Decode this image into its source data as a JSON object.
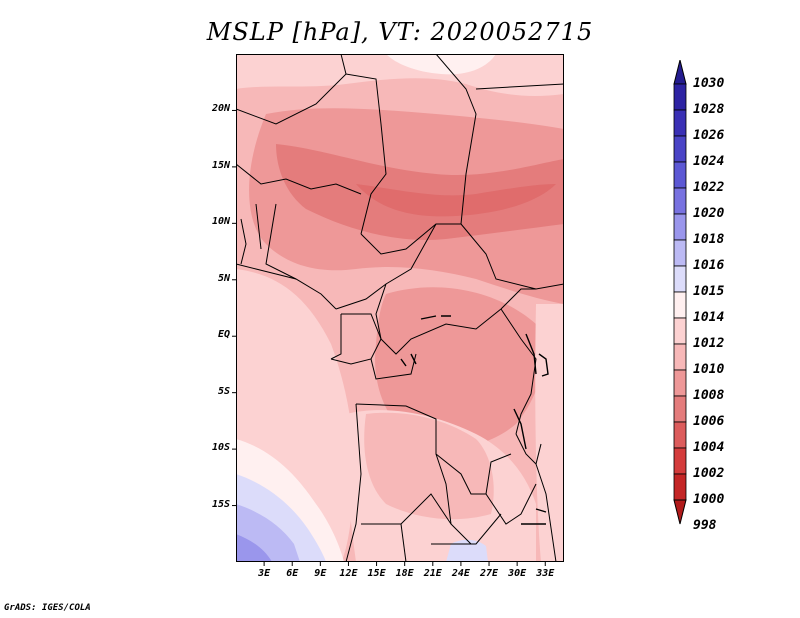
{
  "title": "MSLP [hPa], VT: 2020052715",
  "credit": "GrADS: IGES/COLA",
  "map": {
    "lon_range": [
      0,
      35
    ],
    "lat_range": [
      -20,
      25
    ],
    "lat_ticks": [
      {
        "value": 20,
        "label": "20N"
      },
      {
        "value": 15,
        "label": "15N"
      },
      {
        "value": 10,
        "label": "10N"
      },
      {
        "value": 5,
        "label": "5N"
      },
      {
        "value": 0,
        "label": "EQ"
      },
      {
        "value": -5,
        "label": "5S"
      },
      {
        "value": -10,
        "label": "10S"
      },
      {
        "value": -15,
        "label": "15S"
      }
    ],
    "lon_ticks": [
      {
        "value": 3,
        "label": "3E"
      },
      {
        "value": 6,
        "label": "6E"
      },
      {
        "value": 9,
        "label": "9E"
      },
      {
        "value": 12,
        "label": "12E"
      },
      {
        "value": 15,
        "label": "15E"
      },
      {
        "value": 18,
        "label": "18E"
      },
      {
        "value": 21,
        "label": "21E"
      },
      {
        "value": 24,
        "label": "24E"
      },
      {
        "value": 27,
        "label": "27E"
      },
      {
        "value": 30,
        "label": "30E"
      },
      {
        "value": 33,
        "label": "33E"
      }
    ]
  },
  "colorbar": {
    "levels": [
      {
        "label": "1030",
        "color": "#241c8f"
      },
      {
        "label": "1028",
        "color": "#2d23a3"
      },
      {
        "label": "1026",
        "color": "#3a30b5"
      },
      {
        "label": "1024",
        "color": "#4a44c6"
      },
      {
        "label": "1022",
        "color": "#5c58d4"
      },
      {
        "label": "1020",
        "color": "#7872e0"
      },
      {
        "label": "1018",
        "color": "#9a96ec"
      },
      {
        "label": "1016",
        "color": "#bcbaf4"
      },
      {
        "label": "1015",
        "color": "#dcdcfa"
      },
      {
        "label": "1014",
        "color": "#fff0f0"
      },
      {
        "label": "1012",
        "color": "#fcd2d2"
      },
      {
        "label": "1010",
        "color": "#f7b8b8"
      },
      {
        "label": "1008",
        "color": "#ee9898"
      },
      {
        "label": "1006",
        "color": "#e47c7c"
      },
      {
        "label": "1004",
        "color": "#dc5c5c"
      },
      {
        "label": "1002",
        "color": "#d43c3c"
      },
      {
        "label": "1000",
        "color": "#c42626"
      },
      {
        "label": "998",
        "color": "#b11a1a"
      }
    ]
  }
}
